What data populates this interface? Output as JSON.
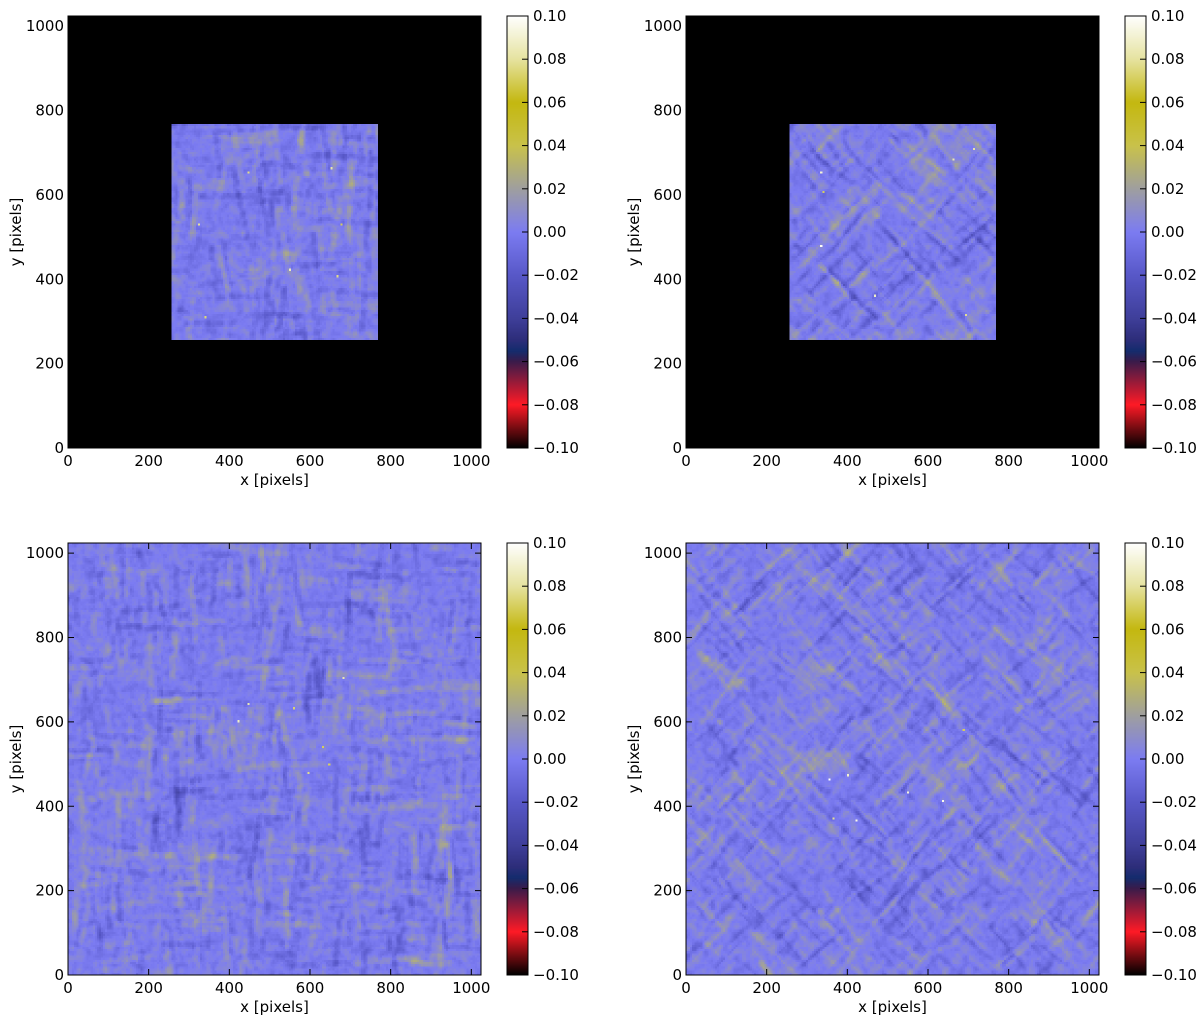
{
  "chart_data": [
    {
      "type": "heatmap",
      "panel": "top-left",
      "xlabel": "x [pixels]",
      "ylabel": "y [pixels]",
      "xlim": [
        0,
        1024
      ],
      "ylim": [
        0,
        1024
      ],
      "xticks": [
        0,
        200,
        400,
        600,
        800,
        1000
      ],
      "yticks": [
        0,
        200,
        400,
        600,
        800,
        1000
      ],
      "masked": true,
      "data_region": {
        "x": [
          256,
          768
        ],
        "y": [
          256,
          768
        ]
      },
      "background_value": -0.1,
      "pattern": "vertical-streaks",
      "seed": 11,
      "colorbar": {
        "min": -0.1,
        "max": 0.1,
        "ticks": [
          "0.10",
          "0.08",
          "0.06",
          "0.04",
          "0.02",
          "0.00",
          "−0.02",
          "−0.04",
          "−0.06",
          "−0.08",
          "−0.10"
        ]
      }
    },
    {
      "type": "heatmap",
      "panel": "top-right",
      "xlabel": "x [pixels]",
      "ylabel": "y [pixels]",
      "xlim": [
        0,
        1024
      ],
      "ylim": [
        0,
        1024
      ],
      "xticks": [
        0,
        200,
        400,
        600,
        800,
        1000
      ],
      "yticks": [
        0,
        200,
        400,
        600,
        800,
        1000
      ],
      "masked": true,
      "data_region": {
        "x": [
          256,
          768
        ],
        "y": [
          256,
          768
        ]
      },
      "background_value": -0.1,
      "pattern": "diagonal-streaks",
      "seed": 23,
      "colorbar": {
        "min": -0.1,
        "max": 0.1,
        "ticks": [
          "0.10",
          "0.08",
          "0.06",
          "0.04",
          "0.02",
          "0.00",
          "−0.02",
          "−0.04",
          "−0.06",
          "−0.08",
          "−0.10"
        ]
      }
    },
    {
      "type": "heatmap",
      "panel": "bottom-left",
      "xlabel": "x [pixels]",
      "ylabel": "y [pixels]",
      "xlim": [
        0,
        1024
      ],
      "ylim": [
        0,
        1024
      ],
      "xticks": [
        0,
        200,
        400,
        600,
        800,
        1000
      ],
      "yticks": [
        0,
        200,
        400,
        600,
        800,
        1000
      ],
      "masked": false,
      "pattern": "vertical-streaks",
      "seed": 37,
      "colorbar": {
        "min": -0.1,
        "max": 0.1,
        "ticks": [
          "0.10",
          "0.08",
          "0.06",
          "0.04",
          "0.02",
          "0.00",
          "−0.02",
          "−0.04",
          "−0.06",
          "−0.08",
          "−0.10"
        ]
      }
    },
    {
      "type": "heatmap",
      "panel": "bottom-right",
      "xlabel": "x [pixels]",
      "ylabel": "y [pixels]",
      "xlim": [
        0,
        1024
      ],
      "ylim": [
        0,
        1024
      ],
      "xticks": [
        0,
        200,
        400,
        600,
        800,
        1000
      ],
      "yticks": [
        0,
        200,
        400,
        600,
        800,
        1000
      ],
      "masked": false,
      "pattern": "diagonal-streaks",
      "seed": 51,
      "colorbar": {
        "min": -0.1,
        "max": 0.1,
        "ticks": [
          "0.10",
          "0.08",
          "0.06",
          "0.04",
          "0.02",
          "0.00",
          "−0.02",
          "−0.04",
          "−0.06",
          "−0.08",
          "−0.10"
        ]
      }
    }
  ],
  "colormap": {
    "name": "gist_stern-like",
    "stops": [
      {
        "v": -0.1,
        "color": "#000000"
      },
      {
        "v": -0.08,
        "color": "#ff1a26"
      },
      {
        "v": -0.06,
        "color": "#3a1b4a"
      },
      {
        "v": -0.055,
        "color": "#142c6e"
      },
      {
        "v": -0.05,
        "color": "#2d2d7a"
      },
      {
        "v": -0.04,
        "color": "#3f3f9a"
      },
      {
        "v": -0.02,
        "color": "#5858c8"
      },
      {
        "v": 0.0,
        "color": "#7c7cf2"
      },
      {
        "v": 0.02,
        "color": "#9f9f9f"
      },
      {
        "v": 0.04,
        "color": "#c9c24a"
      },
      {
        "v": 0.06,
        "color": "#c4b810"
      },
      {
        "v": 0.08,
        "color": "#e6e3a0"
      },
      {
        "v": 0.1,
        "color": "#ffffff"
      }
    ]
  }
}
